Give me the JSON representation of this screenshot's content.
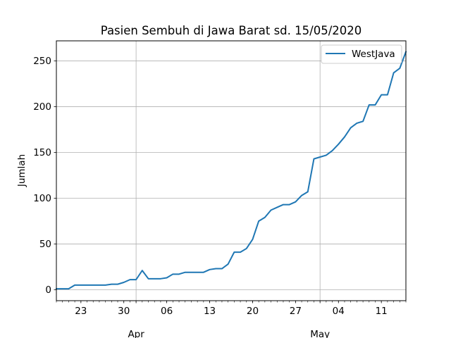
{
  "chart_data": {
    "type": "line",
    "title": "Pasien Sembuh di Jawa Barat sd. 15/05/2020",
    "xlabel": "",
    "ylabel": "Jumlah",
    "grid": true,
    "legend_position": "top-right",
    "xlim": [
      "2020-03-19",
      "2020-05-15"
    ],
    "ylim": [
      -12,
      272
    ],
    "y_ticks": [
      0,
      50,
      100,
      150,
      200,
      250
    ],
    "x_minor_ticks": [
      {
        "date": "2020-03-23",
        "label": "23"
      },
      {
        "date": "2020-03-30",
        "label": "30"
      },
      {
        "date": "2020-04-06",
        "label": "06"
      },
      {
        "date": "2020-04-13",
        "label": "13"
      },
      {
        "date": "2020-04-20",
        "label": "20"
      },
      {
        "date": "2020-04-27",
        "label": "27"
      },
      {
        "date": "2020-05-04",
        "label": "04"
      },
      {
        "date": "2020-05-11",
        "label": "11"
      }
    ],
    "x_major_ticks": [
      {
        "date": "2020-04-01",
        "label": "Apr"
      },
      {
        "date": "2020-05-01",
        "label": "May"
      }
    ],
    "series": [
      {
        "name": "WestJava",
        "color": "#1f77b4",
        "x": [
          "2020-03-19",
          "2020-03-20",
          "2020-03-21",
          "2020-03-22",
          "2020-03-23",
          "2020-03-24",
          "2020-03-25",
          "2020-03-26",
          "2020-03-27",
          "2020-03-28",
          "2020-03-29",
          "2020-03-30",
          "2020-03-31",
          "2020-04-01",
          "2020-04-02",
          "2020-04-03",
          "2020-04-04",
          "2020-04-05",
          "2020-04-06",
          "2020-04-07",
          "2020-04-08",
          "2020-04-09",
          "2020-04-10",
          "2020-04-11",
          "2020-04-12",
          "2020-04-13",
          "2020-04-14",
          "2020-04-15",
          "2020-04-16",
          "2020-04-17",
          "2020-04-18",
          "2020-04-19",
          "2020-04-20",
          "2020-04-21",
          "2020-04-22",
          "2020-04-23",
          "2020-04-24",
          "2020-04-25",
          "2020-04-26",
          "2020-04-27",
          "2020-04-28",
          "2020-04-29",
          "2020-04-30",
          "2020-05-01",
          "2020-05-02",
          "2020-05-03",
          "2020-05-04",
          "2020-05-05",
          "2020-05-06",
          "2020-05-07",
          "2020-05-08",
          "2020-05-09",
          "2020-05-10",
          "2020-05-11",
          "2020-05-12",
          "2020-05-13",
          "2020-05-14",
          "2020-05-15"
        ],
        "values": [
          1,
          1,
          1,
          5,
          5,
          5,
          5,
          5,
          5,
          6,
          6,
          8,
          11,
          11,
          21,
          12,
          12,
          12,
          13,
          17,
          17,
          19,
          19,
          19,
          19,
          22,
          23,
          23,
          28,
          41,
          41,
          45,
          55,
          75,
          79,
          87,
          90,
          93,
          93,
          96,
          103,
          107,
          143,
          145,
          147,
          152,
          159,
          167,
          177,
          182,
          184,
          202,
          202,
          213,
          213,
          237,
          242,
          260
        ]
      }
    ]
  }
}
